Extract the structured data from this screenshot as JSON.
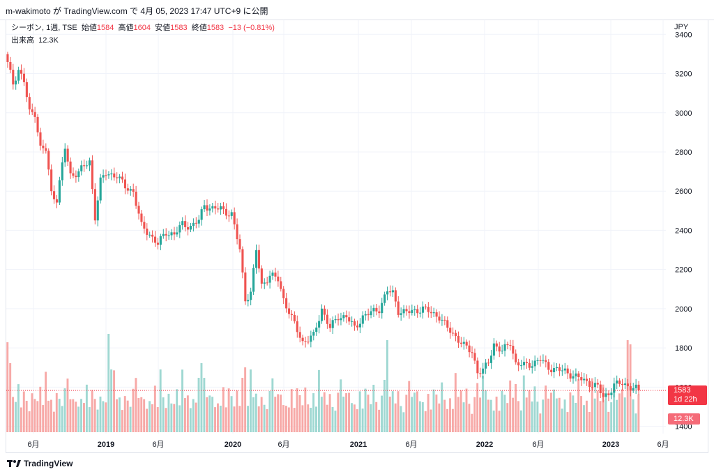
{
  "header": {
    "attribution": "m-wakimoto が TradingView.com で 4月 05, 2023 17:47 UTC+9 に公開"
  },
  "legend": {
    "symbol": "シーボン, 1週, TSE",
    "open_label": "始値",
    "open_value": "1584",
    "high_label": "高値",
    "high_value": "1604",
    "low_label": "安値",
    "low_value": "1583",
    "close_label": "終値",
    "close_value": "1583",
    "change": "−13 (−0.81%)",
    "volume_label": "出来高",
    "volume_value": "12.3K"
  },
  "axis": {
    "unit": "JPY"
  },
  "price_tag": {
    "price": "1583",
    "countdown": "1d 22h"
  },
  "volume_tag": {
    "value": "12.3K"
  },
  "footer": {
    "brand": "TradingView"
  },
  "colors": {
    "up": "#26a69a",
    "down": "#ef5350",
    "up_volume": "#9fd8d2",
    "down_volume": "#f7a9a7",
    "grid": "#f0f3fa",
    "last_price_line": "#f23645"
  },
  "chart_data": {
    "type": "candlestick",
    "y_ticks": [
      "3400",
      "3200",
      "3000",
      "2800",
      "2600",
      "2400",
      "2200",
      "2000",
      "1800",
      "1600",
      "1400"
    ],
    "x_ticks": [
      "6月",
      "2019",
      "6月",
      "2020",
      "6月",
      "2021",
      "6月",
      "2022",
      "6月",
      "2023",
      "6月"
    ],
    "ylim": [
      1370,
      3490
    ],
    "last_price": 1583,
    "close_anchors": [
      [
        0,
        3250
      ],
      [
        2,
        3150
      ],
      [
        4,
        3220
      ],
      [
        6,
        3160
      ],
      [
        8,
        3000
      ],
      [
        10,
        3000
      ],
      [
        12,
        2820
      ],
      [
        14,
        2810
      ],
      [
        16,
        2590
      ],
      [
        18,
        2560
      ],
      [
        21,
        2820
      ],
      [
        23,
        2680
      ],
      [
        26,
        2700
      ],
      [
        30,
        2750
      ],
      [
        32,
        2470
      ],
      [
        34,
        2650
      ],
      [
        36,
        2690
      ],
      [
        40,
        2680
      ],
      [
        43,
        2620
      ],
      [
        46,
        2600
      ],
      [
        49,
        2420
      ],
      [
        52,
        2380
      ],
      [
        55,
        2330
      ],
      [
        58,
        2390
      ],
      [
        61,
        2380
      ],
      [
        64,
        2430
      ],
      [
        67,
        2420
      ],
      [
        70,
        2450
      ],
      [
        72,
        2530
      ],
      [
        75,
        2510
      ],
      [
        78,
        2510
      ],
      [
        82,
        2480
      ],
      [
        85,
        2300
      ],
      [
        87,
        2050
      ],
      [
        89,
        2080
      ],
      [
        91,
        2300
      ],
      [
        93,
        2120
      ],
      [
        96,
        2170
      ],
      [
        99,
        2150
      ],
      [
        101,
        2050
      ],
      [
        104,
        1950
      ],
      [
        108,
        1830
      ],
      [
        112,
        1860
      ],
      [
        115,
        2000
      ],
      [
        118,
        1900
      ],
      [
        121,
        1960
      ],
      [
        124,
        1960
      ],
      [
        127,
        1900
      ],
      [
        130,
        1960
      ],
      [
        133,
        1980
      ],
      [
        136,
        2000
      ],
      [
        139,
        2090
      ],
      [
        141,
        2080
      ],
      [
        143,
        1990
      ],
      [
        146,
        1980
      ],
      [
        149,
        1990
      ],
      [
        152,
        2000
      ],
      [
        155,
        1980
      ],
      [
        158,
        1960
      ],
      [
        161,
        1900
      ],
      [
        164,
        1860
      ],
      [
        167,
        1810
      ],
      [
        170,
        1780
      ],
      [
        172,
        1680
      ],
      [
        174,
        1680
      ],
      [
        176,
        1730
      ],
      [
        178,
        1820
      ],
      [
        181,
        1780
      ],
      [
        184,
        1830
      ],
      [
        186,
        1720
      ],
      [
        189,
        1710
      ],
      [
        192,
        1720
      ],
      [
        195,
        1740
      ],
      [
        198,
        1700
      ],
      [
        201,
        1690
      ],
      [
        204,
        1680
      ],
      [
        207,
        1660
      ],
      [
        210,
        1640
      ],
      [
        213,
        1620
      ],
      [
        216,
        1600
      ],
      [
        218,
        1550
      ],
      [
        220,
        1570
      ],
      [
        222,
        1610
      ],
      [
        225,
        1620
      ],
      [
        228,
        1600
      ],
      [
        230,
        1590
      ],
      [
        231,
        1583
      ]
    ],
    "volume_range": [
      0,
      500
    ],
    "volume_pattern": [
      205,
      170,
      190,
      150,
      230,
      120,
      210,
      180,
      140,
      260,
      190,
      160,
      220,
      130,
      300,
      170,
      200,
      150,
      240,
      180,
      130,
      210,
      260,
      170,
      190
    ]
  }
}
